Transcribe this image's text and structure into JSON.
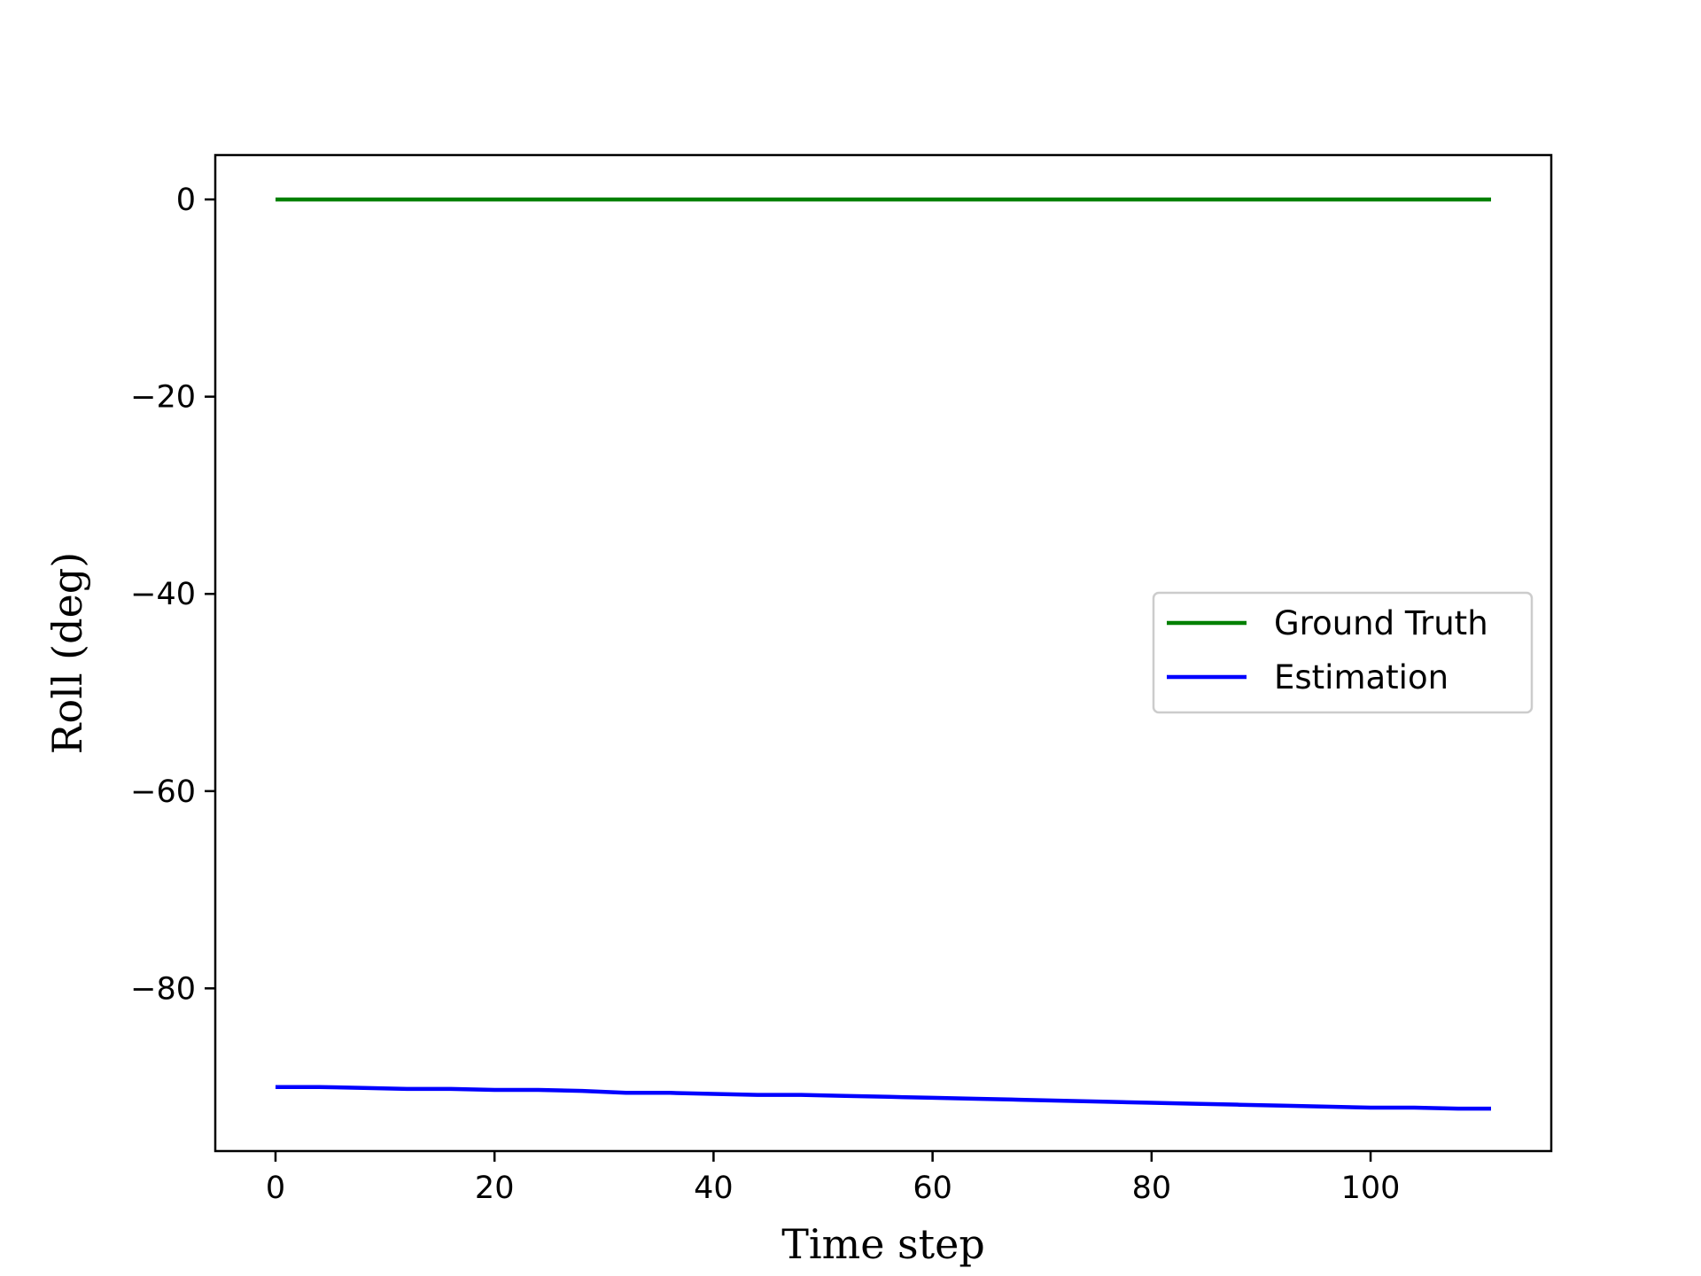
{
  "chart_data": {
    "type": "line",
    "title": "",
    "xlabel": "Time step",
    "ylabel": "Roll (deg)",
    "xlim": [
      -5.5,
      116.5
    ],
    "ylim": [
      -96.5,
      4.5
    ],
    "xticks": [
      0,
      20,
      40,
      60,
      80,
      100
    ],
    "xtick_labels": [
      "0",
      "20",
      "40",
      "60",
      "80",
      "100"
    ],
    "yticks": [
      0,
      -20,
      -40,
      -60,
      -80
    ],
    "ytick_labels": [
      "0",
      "−20",
      "−40",
      "−60",
      "−80"
    ],
    "grid": false,
    "legend_position": "center-right",
    "series": [
      {
        "name": "Ground Truth",
        "color": "#008000",
        "x": [
          0,
          111
        ],
        "y": [
          0,
          0
        ]
      },
      {
        "name": "Estimation",
        "color": "#0000ff",
        "x": [
          0,
          4,
          8,
          12,
          16,
          20,
          24,
          28,
          32,
          36,
          40,
          44,
          48,
          52,
          56,
          60,
          64,
          68,
          72,
          76,
          80,
          84,
          88,
          92,
          96,
          100,
          104,
          108,
          111
        ],
        "y": [
          -90.0,
          -90.0,
          -90.1,
          -90.2,
          -90.2,
          -90.3,
          -90.3,
          -90.4,
          -90.6,
          -90.6,
          -90.7,
          -90.8,
          -90.8,
          -90.9,
          -91.0,
          -91.1,
          -91.2,
          -91.3,
          -91.4,
          -91.5,
          -91.6,
          -91.7,
          -91.8,
          -91.9,
          -92.0,
          -92.1,
          -92.1,
          -92.2,
          -92.2
        ]
      }
    ]
  }
}
